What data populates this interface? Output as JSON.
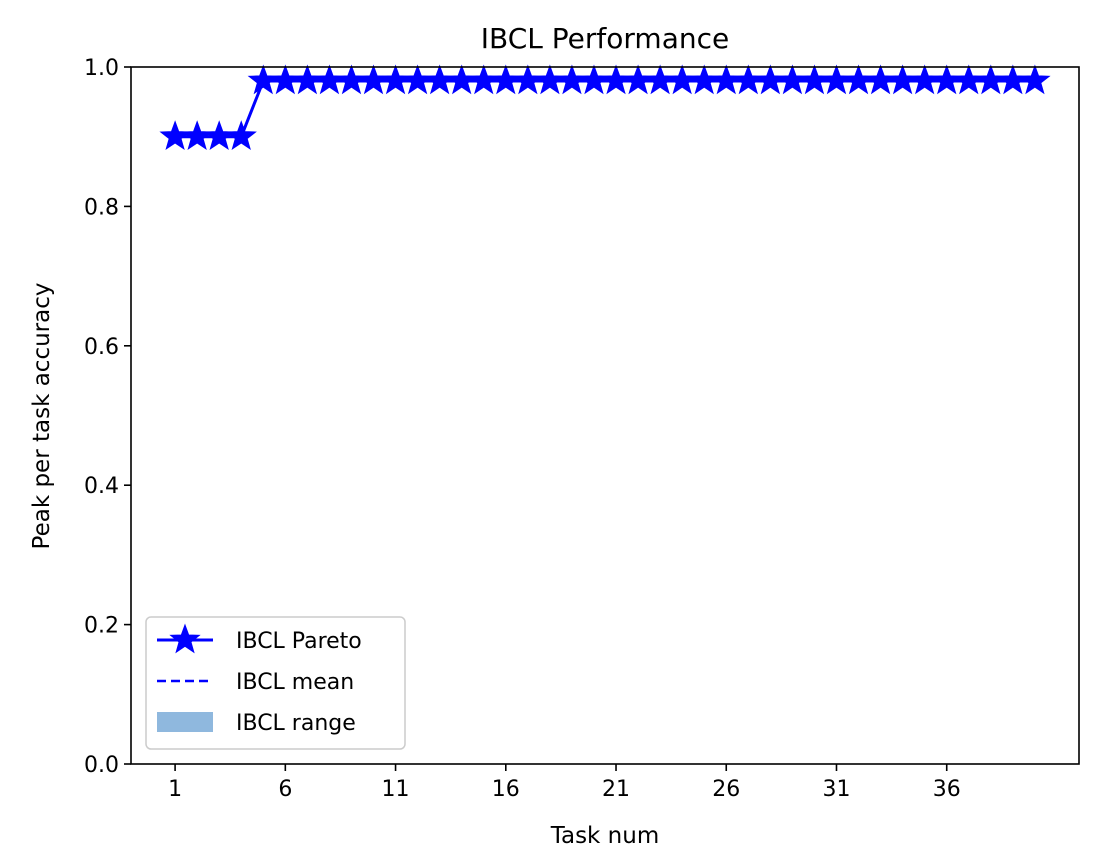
{
  "chart_data": {
    "type": "line",
    "title": "IBCL Performance",
    "xlabel": "Task num",
    "ylabel": "Peak per task accuracy",
    "xticks": [
      1,
      6,
      11,
      16,
      21,
      26,
      31,
      36
    ],
    "xlim": [
      -1,
      42
    ],
    "ylim": [
      0,
      1
    ],
    "yticks": [
      "0.0",
      "0.2",
      "0.4",
      "0.6",
      "0.8",
      "1.0"
    ],
    "grid": false,
    "legend_position": "lower-left",
    "x": [
      1,
      2,
      3,
      4,
      5,
      6,
      7,
      8,
      9,
      10,
      11,
      12,
      13,
      14,
      15,
      16,
      17,
      18,
      19,
      20,
      21,
      22,
      23,
      24,
      25,
      26,
      27,
      28,
      29,
      30,
      31,
      32,
      33,
      34,
      35,
      36,
      37,
      38,
      39,
      40
    ],
    "series": [
      {
        "name": "IBCL Pareto",
        "style": "solid",
        "marker": "star",
        "color": "#0000ff",
        "values": [
          0.9,
          0.9,
          0.9,
          0.9,
          0.98,
          0.98,
          0.98,
          0.98,
          0.98,
          0.98,
          0.98,
          0.98,
          0.98,
          0.98,
          0.98,
          0.98,
          0.98,
          0.98,
          0.98,
          0.98,
          0.98,
          0.98,
          0.98,
          0.98,
          0.98,
          0.98,
          0.98,
          0.98,
          0.98,
          0.98,
          0.98,
          0.98,
          0.98,
          0.98,
          0.98,
          0.98,
          0.98,
          0.98,
          0.98,
          0.98
        ]
      },
      {
        "name": "IBCL mean",
        "style": "dashed",
        "color": "#0000ff",
        "values": [
          0.9,
          0.9,
          0.9,
          0.9,
          0.98,
          0.98,
          0.98,
          0.98,
          0.98,
          0.98,
          0.98,
          0.98,
          0.98,
          0.98,
          0.98,
          0.98,
          0.98,
          0.98,
          0.98,
          0.98,
          0.98,
          0.98,
          0.98,
          0.98,
          0.98,
          0.98,
          0.98,
          0.98,
          0.98,
          0.98,
          0.98,
          0.98,
          0.98,
          0.98,
          0.98,
          0.98,
          0.98,
          0.98,
          0.98,
          0.98
        ]
      },
      {
        "name": "IBCL range",
        "style": "band",
        "color": "#8fb8de",
        "lower": [
          0.9,
          0.9,
          0.9,
          0.9,
          0.98,
          0.98,
          0.98,
          0.98,
          0.98,
          0.98,
          0.98,
          0.98,
          0.98,
          0.98,
          0.98,
          0.98,
          0.98,
          0.98,
          0.98,
          0.98,
          0.98,
          0.98,
          0.98,
          0.98,
          0.98,
          0.98,
          0.98,
          0.98,
          0.98,
          0.98,
          0.98,
          0.98,
          0.98,
          0.98,
          0.98,
          0.98,
          0.98,
          0.98,
          0.98,
          0.98
        ],
        "upper": [
          0.9,
          0.9,
          0.9,
          0.9,
          0.98,
          0.98,
          0.98,
          0.98,
          0.98,
          0.98,
          0.98,
          0.98,
          0.98,
          0.98,
          0.98,
          0.98,
          0.98,
          0.98,
          0.98,
          0.98,
          0.98,
          0.98,
          0.98,
          0.98,
          0.98,
          0.98,
          0.98,
          0.98,
          0.98,
          0.98,
          0.98,
          0.98,
          0.98,
          0.98,
          0.98,
          0.98,
          0.98,
          0.98,
          0.98,
          0.98
        ]
      }
    ]
  }
}
